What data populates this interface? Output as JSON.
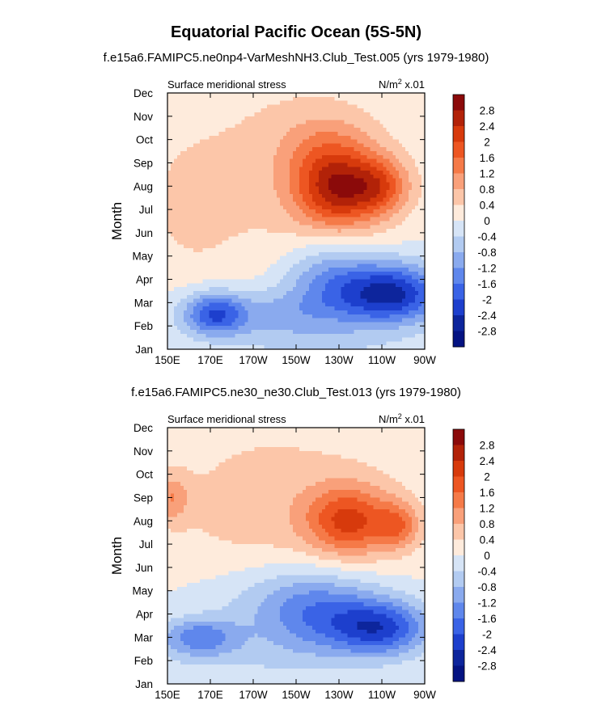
{
  "chart_data": {
    "type": "heatmap",
    "title": "Equatorial Pacific Ocean (5S-5N)",
    "colorbar": {
      "levels": [
        "2.8",
        "2.4",
        "2",
        "1.6",
        "1.2",
        "0.8",
        "0.4",
        "0",
        "-0.4",
        "-0.8",
        "-1.2",
        "-1.6",
        "-2",
        "-2.4",
        "-2.8"
      ],
      "colors": [
        "#8b0a0a",
        "#b22208",
        "#d73a0c",
        "#ed5622",
        "#f57a48",
        "#f9a07a",
        "#fcc6a9",
        "#feebdc",
        "#d6e4f6",
        "#b2cbf1",
        "#8aaaee",
        "#5f87ec",
        "#3a63e6",
        "#1d3fcd",
        "#0d259c",
        "#041382"
      ]
    },
    "panels": [
      {
        "title": "f.e15a6.FAMIPC5.ne0np4-VarMeshNH3.Club_Test.005 (yrs 1979-1980)",
        "left_label": "Surface meridional stress",
        "units_base": "N/m",
        "units_sup": "2",
        "units_scale": "x.01",
        "ylabel": "Month",
        "x_ticks": [
          "150E",
          "170E",
          "170W",
          "150W",
          "130W",
          "110W",
          "90W"
        ],
        "y_ticks": [
          "Jan",
          "Feb",
          "Mar",
          "Apr",
          "May",
          "Jun",
          "Jul",
          "Aug",
          "Sep",
          "Oct",
          "Nov",
          "Dec"
        ],
        "xlim": [
          150,
          270
        ],
        "ylim": [
          0,
          11
        ],
        "anchors": [
          {
            "x": 230,
            "y": 6.8,
            "a": 2.2,
            "sx": 20,
            "sy": 1.6
          },
          {
            "x": 250,
            "y": 7.0,
            "a": 1.2,
            "sx": 14,
            "sy": 1.2
          },
          {
            "x": 225,
            "y": 8.6,
            "a": 0.8,
            "sx": 22,
            "sy": 1.6
          },
          {
            "x": 200,
            "y": 7.5,
            "a": 0.5,
            "sx": 60,
            "sy": 5.0
          },
          {
            "x": 160,
            "y": 6.0,
            "a": 0.3,
            "sx": 18,
            "sy": 2.5
          },
          {
            "x": 255,
            "y": 2.4,
            "a": -2.5,
            "sx": 24,
            "sy": 1.3
          },
          {
            "x": 225,
            "y": 3.0,
            "a": -1.2,
            "sx": 22,
            "sy": 1.6
          },
          {
            "x": 172,
            "y": 1.5,
            "a": -1.7,
            "sx": 14,
            "sy": 0.9
          },
          {
            "x": 200,
            "y": 1.5,
            "a": -0.9,
            "sx": 40,
            "sy": 1.1
          },
          {
            "x": 220,
            "y": 0.2,
            "a": -0.4,
            "sx": 40,
            "sy": 0.8
          }
        ]
      },
      {
        "title": "f.e15a6.FAMIPC5.ne30_ne30.Club_Test.013 (yrs 1979-1980)",
        "left_label": "Surface meridional stress",
        "units_base": "N/m",
        "units_sup": "2",
        "units_scale": "x.01",
        "ylabel": "Month",
        "x_ticks": [
          "150E",
          "170E",
          "170W",
          "150W",
          "130W",
          "110W",
          "90W"
        ],
        "y_ticks": [
          "Jan",
          "Feb",
          "Mar",
          "Apr",
          "May",
          "Jun",
          "Jul",
          "Aug",
          "Sep",
          "Oct",
          "Nov",
          "Dec"
        ],
        "xlim": [
          150,
          270
        ],
        "ylim": [
          0,
          11
        ],
        "anchors": [
          {
            "x": 235,
            "y": 7.0,
            "a": 1.8,
            "sx": 20,
            "sy": 1.5
          },
          {
            "x": 258,
            "y": 6.8,
            "a": 1.1,
            "sx": 10,
            "sy": 1.0
          },
          {
            "x": 200,
            "y": 7.3,
            "a": 0.6,
            "sx": 60,
            "sy": 4.5
          },
          {
            "x": 152,
            "y": 8.0,
            "a": 0.9,
            "sx": 8,
            "sy": 1.0
          },
          {
            "x": 250,
            "y": 2.4,
            "a": -2.0,
            "sx": 22,
            "sy": 1.2
          },
          {
            "x": 220,
            "y": 3.0,
            "a": -1.3,
            "sx": 28,
            "sy": 1.8
          },
          {
            "x": 165,
            "y": 2.0,
            "a": -1.4,
            "sx": 18,
            "sy": 0.8
          },
          {
            "x": 200,
            "y": 3.5,
            "a": -0.6,
            "sx": 45,
            "sy": 2.0
          },
          {
            "x": 180,
            "y": 1.0,
            "a": -0.3,
            "sx": 45,
            "sy": 1.0
          },
          {
            "x": 170,
            "y": 10.9,
            "a": -0.1,
            "sx": 12,
            "sy": 0.4
          }
        ]
      }
    ]
  }
}
